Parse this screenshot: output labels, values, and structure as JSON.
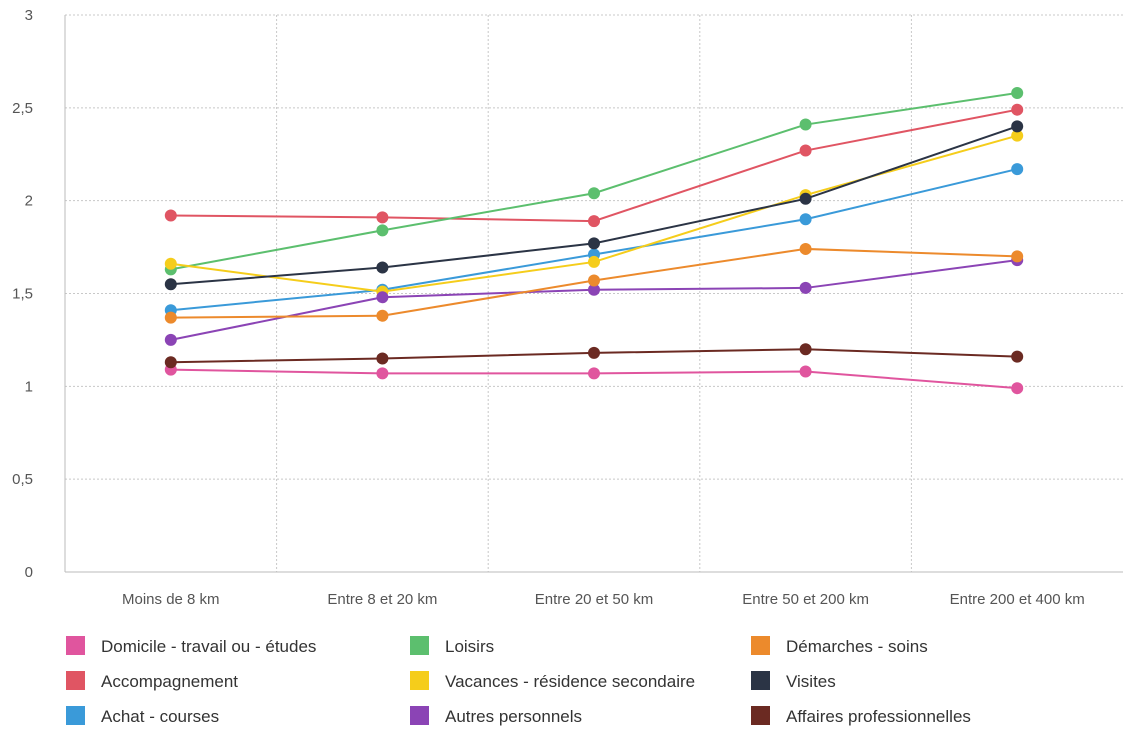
{
  "chart_data": {
    "type": "line",
    "title": "",
    "xlabel": "",
    "ylabel": "",
    "categories": [
      "Moins de 8 km",
      "Entre 8 et 20 km",
      "Entre 20 et 50 km",
      "Entre 50 et 200 km",
      "Entre 200 et 400 km"
    ],
    "ylim": [
      0,
      3
    ],
    "yticks": [
      0,
      0.5,
      1,
      1.5,
      2,
      2.5,
      3
    ],
    "ytick_labels": [
      "0",
      "0,5",
      "1",
      "1,5",
      "2",
      "2,5",
      "3"
    ],
    "grid": true,
    "legend_position": "bottom",
    "series": [
      {
        "name": "Domicile - travail ou - études",
        "color": "#e0559e",
        "values": [
          1.09,
          1.07,
          1.07,
          1.08,
          0.99
        ]
      },
      {
        "name": "Accompagnement",
        "color": "#e05563",
        "values": [
          1.92,
          1.91,
          1.89,
          2.27,
          2.49
        ]
      },
      {
        "name": "Achat - courses",
        "color": "#3a9ad9",
        "values": [
          1.41,
          1.52,
          1.71,
          1.9,
          2.17
        ]
      },
      {
        "name": "Loisirs",
        "color": "#5cbf6e",
        "values": [
          1.63,
          1.84,
          2.04,
          2.41,
          2.58
        ]
      },
      {
        "name": "Vacances - résidence secondaire",
        "color": "#f5cd1b",
        "values": [
          1.66,
          1.51,
          1.67,
          2.03,
          2.35
        ]
      },
      {
        "name": "Autres personnels",
        "color": "#8b44b5",
        "values": [
          1.25,
          1.48,
          1.52,
          1.53,
          1.68
        ]
      },
      {
        "name": "Démarches - soins",
        "color": "#ec8a2c",
        "values": [
          1.37,
          1.38,
          1.57,
          1.74,
          1.7
        ]
      },
      {
        "name": "Visites",
        "color": "#2b3445",
        "values": [
          1.55,
          1.64,
          1.77,
          2.01,
          2.4
        ]
      },
      {
        "name": "Affaires professionnelles",
        "color": "#6b2a22",
        "values": [
          1.13,
          1.15,
          1.18,
          1.2,
          1.16
        ]
      }
    ]
  }
}
